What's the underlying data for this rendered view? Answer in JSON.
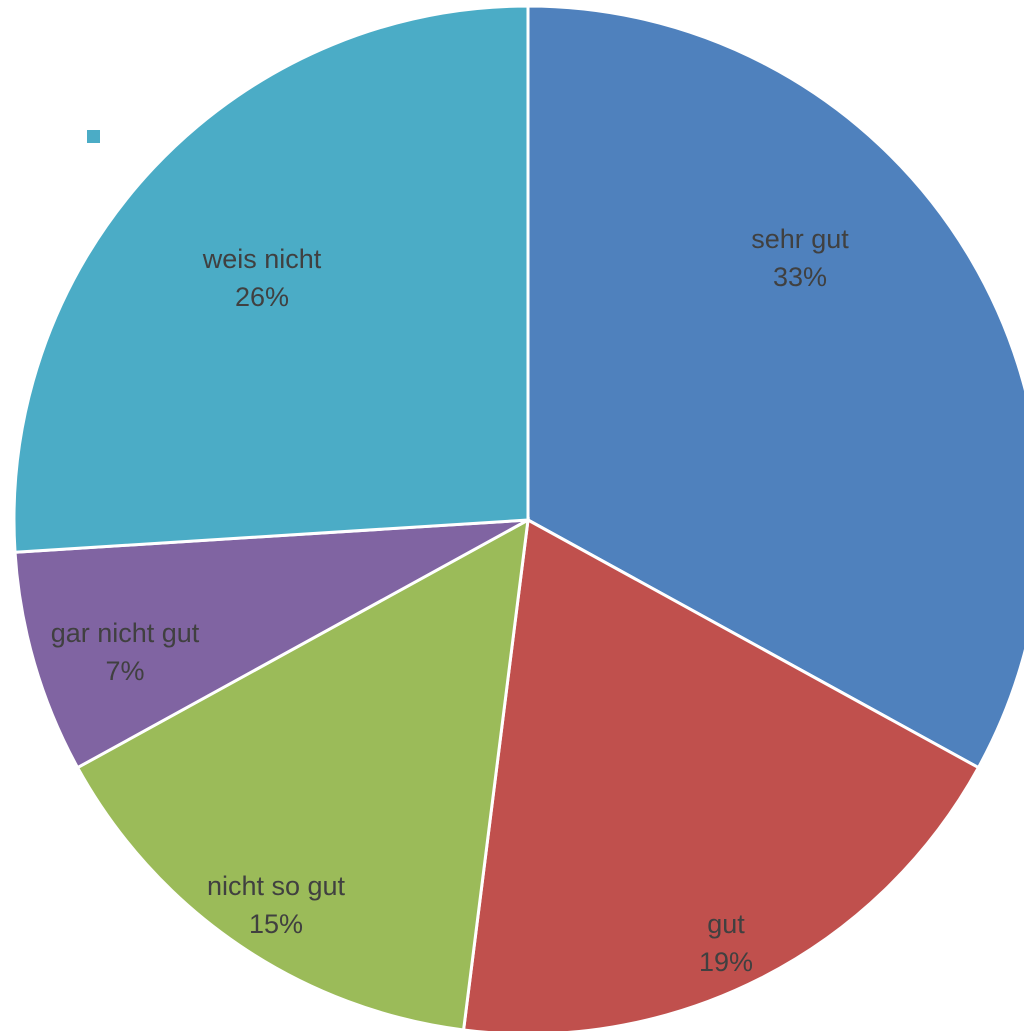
{
  "chart_data": {
    "type": "pie",
    "slices": [
      {
        "label": "sehr gut",
        "value": 33,
        "percent_label": "33%",
        "color": "#4f81bd"
      },
      {
        "label": "gut",
        "value": 19,
        "percent_label": "19%",
        "color": "#c0504d"
      },
      {
        "label": "nicht so gut",
        "value": 15,
        "percent_label": "15%",
        "color": "#9bbb59"
      },
      {
        "label": "gar nicht gut",
        "value": 7,
        "percent_label": "7%",
        "color": "#8064a2"
      },
      {
        "label": "weis nicht",
        "value": 26,
        "percent_label": "26%",
        "color": "#4bacc6"
      }
    ],
    "legend_marker_color": "#4bacc6"
  }
}
